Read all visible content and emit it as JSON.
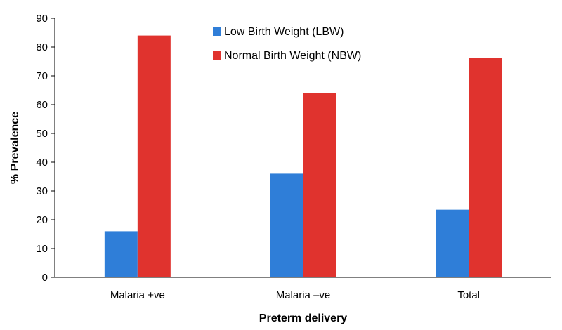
{
  "chart_data": {
    "type": "bar",
    "categories": [
      "Malaria +ve",
      "Malaria –ve",
      "Total"
    ],
    "series": [
      {
        "name": "Low Birth Weight (LBW)",
        "values": [
          16,
          36,
          23.5
        ],
        "color": "#2f7ed8"
      },
      {
        "name": "Normal Birth Weight (NBW)",
        "values": [
          84,
          64,
          76.3
        ],
        "color": "#e0332e"
      }
    ],
    "title": "",
    "xlabel": "Preterm delivery",
    "ylabel": "% Prevalence",
    "ylim": [
      0,
      90
    ],
    "yticks": [
      0,
      10,
      20,
      30,
      40,
      50,
      60,
      70,
      80,
      90
    ],
    "grid": false,
    "legend": "top-center"
  }
}
